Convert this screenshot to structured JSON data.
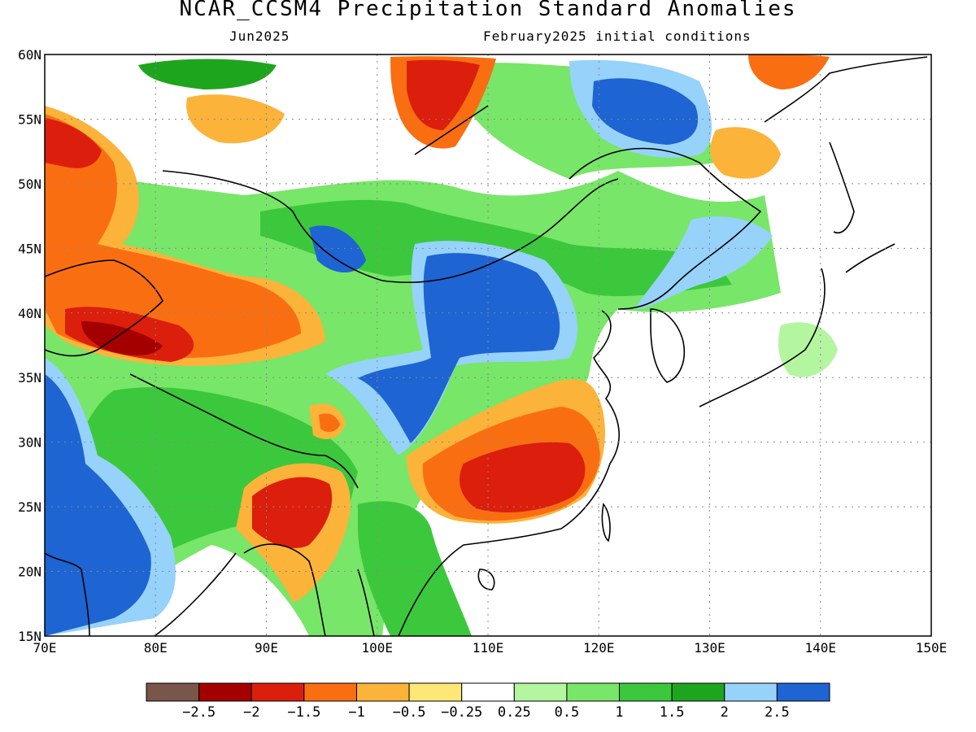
{
  "title": "NCAR_CCSM4 Precipitation Standard Anomalies",
  "subtitle_left": "Jun2025",
  "subtitle_right": "February2025 initial conditions",
  "map": {
    "lon_range": [
      70,
      150
    ],
    "lat_range": [
      15,
      60
    ],
    "x_ticks": [
      "70E",
      "80E",
      "90E",
      "100E",
      "110E",
      "120E",
      "130E",
      "140E",
      "150E"
    ],
    "y_ticks": [
      "15N",
      "20N",
      "25N",
      "30N",
      "35N",
      "40N",
      "45N",
      "50N",
      "55N",
      "60N"
    ],
    "grid": true
  },
  "colorbar": {
    "colors": [
      "#7a5549",
      "#a50000",
      "#dc1e0c",
      "#fa6e12",
      "#fbb33a",
      "#fde877",
      "#ffffff",
      "#b4f5a0",
      "#78e668",
      "#3cc83c",
      "#1ea51e",
      "#96d2fa",
      "#1e64d2"
    ],
    "labels": [
      "−2.5",
      "−2",
      "−1.5",
      "−1",
      "−0.5",
      "−0.25",
      "0.25",
      "0.5",
      "1",
      "1.5",
      "2",
      "2.5"
    ]
  },
  "chart_data": {
    "type": "heatmap",
    "title": "NCAR_CCSM4 Precipitation Standard Anomalies",
    "subtitle": "Jun2025 — February2025 initial conditions",
    "x_axis": "longitude",
    "xlim": [
      70,
      150
    ],
    "y_axis": "latitude",
    "ylim": [
      15,
      60
    ],
    "levels": [
      -2.5,
      -2,
      -1.5,
      -1,
      -0.5,
      -0.25,
      0.25,
      0.5,
      1,
      1.5,
      2,
      2.5
    ],
    "regions": [
      {
        "lon": 115.5,
        "lat": 27.5,
        "value": -2
      },
      {
        "lon": 77,
        "lat": 38,
        "value": -2.2
      },
      {
        "lon": 72,
        "lat": 53,
        "value": -1.7
      },
      {
        "lon": 92,
        "lat": 24.5,
        "value": -2
      },
      {
        "lon": 104,
        "lat": 57,
        "value": -1.8
      },
      {
        "lon": 110,
        "lat": 40,
        "value": 2.6
      },
      {
        "lon": 102,
        "lat": 34,
        "value": 2.6
      },
      {
        "lon": 125,
        "lat": 56.5,
        "value": 2.6
      },
      {
        "lon": 75,
        "lat": 22,
        "value": 2.6
      },
      {
        "lon": 120,
        "lat": 47,
        "value": 1.4
      },
      {
        "lon": 87,
        "lat": 26,
        "value": 1.4
      },
      {
        "lon": 133,
        "lat": 51,
        "value": -0.9
      },
      {
        "lon": 140,
        "lat": 58,
        "value": -0.9
      }
    ]
  }
}
